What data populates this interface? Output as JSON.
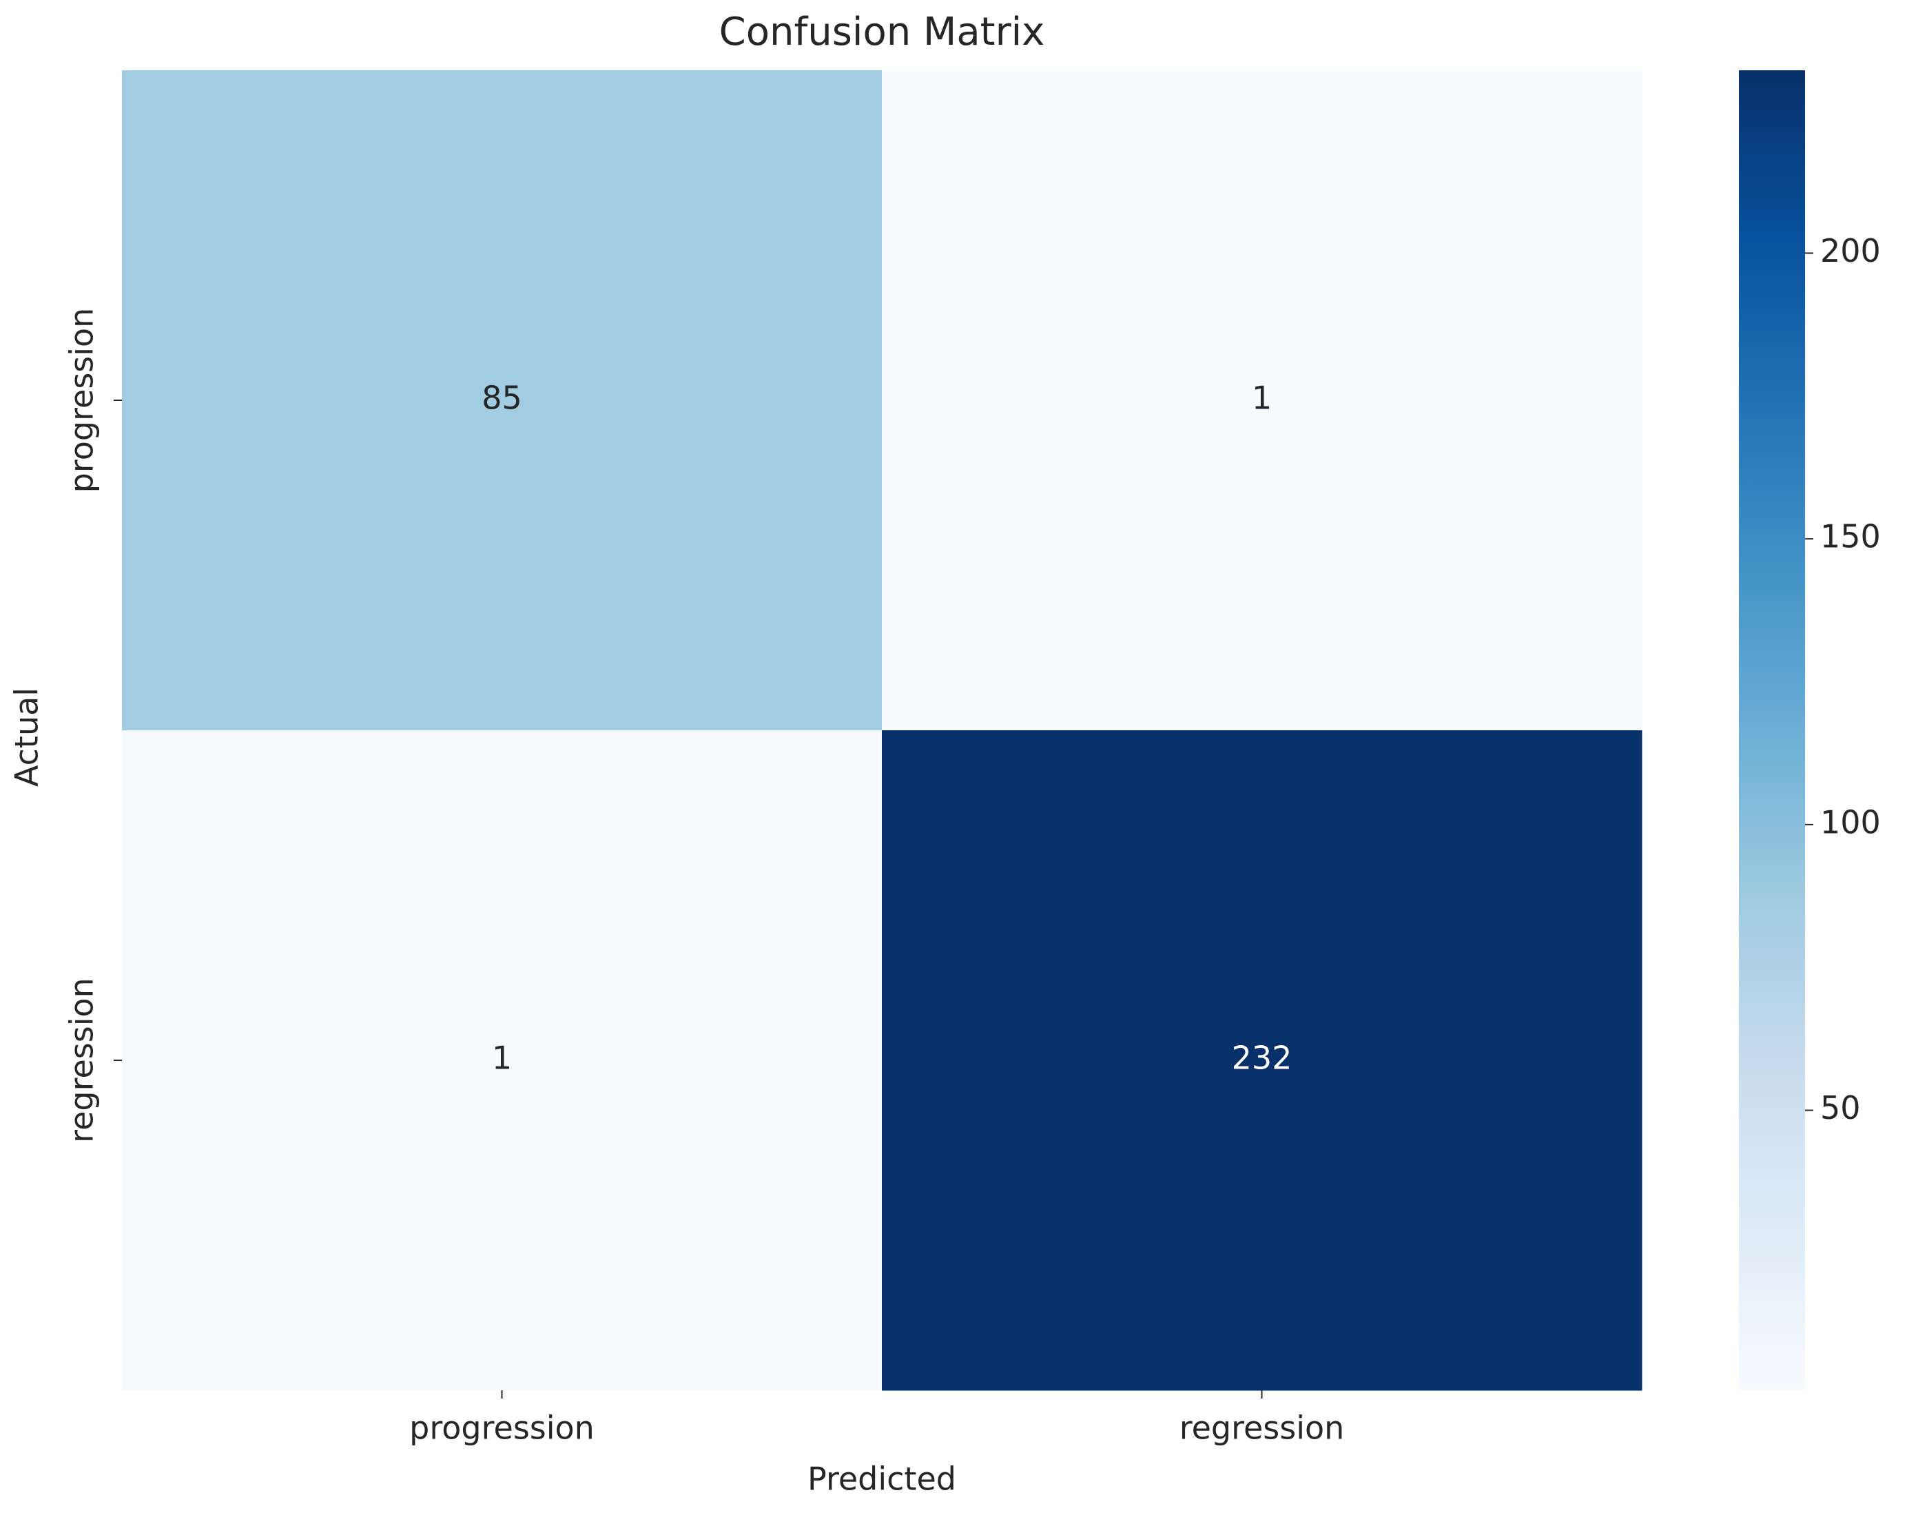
{
  "chart_data": {
    "type": "heatmap",
    "title": "Confusion Matrix",
    "xlabel": "Predicted",
    "ylabel": "Actual",
    "x_categories": [
      "progression",
      "regression"
    ],
    "y_categories": [
      "progression",
      "regression"
    ],
    "values": [
      [
        85,
        1
      ],
      [
        1,
        232
      ]
    ],
    "colormap": "Blues",
    "clim": [
      1,
      232
    ],
    "cticks": [
      50,
      100,
      150,
      200
    ]
  }
}
